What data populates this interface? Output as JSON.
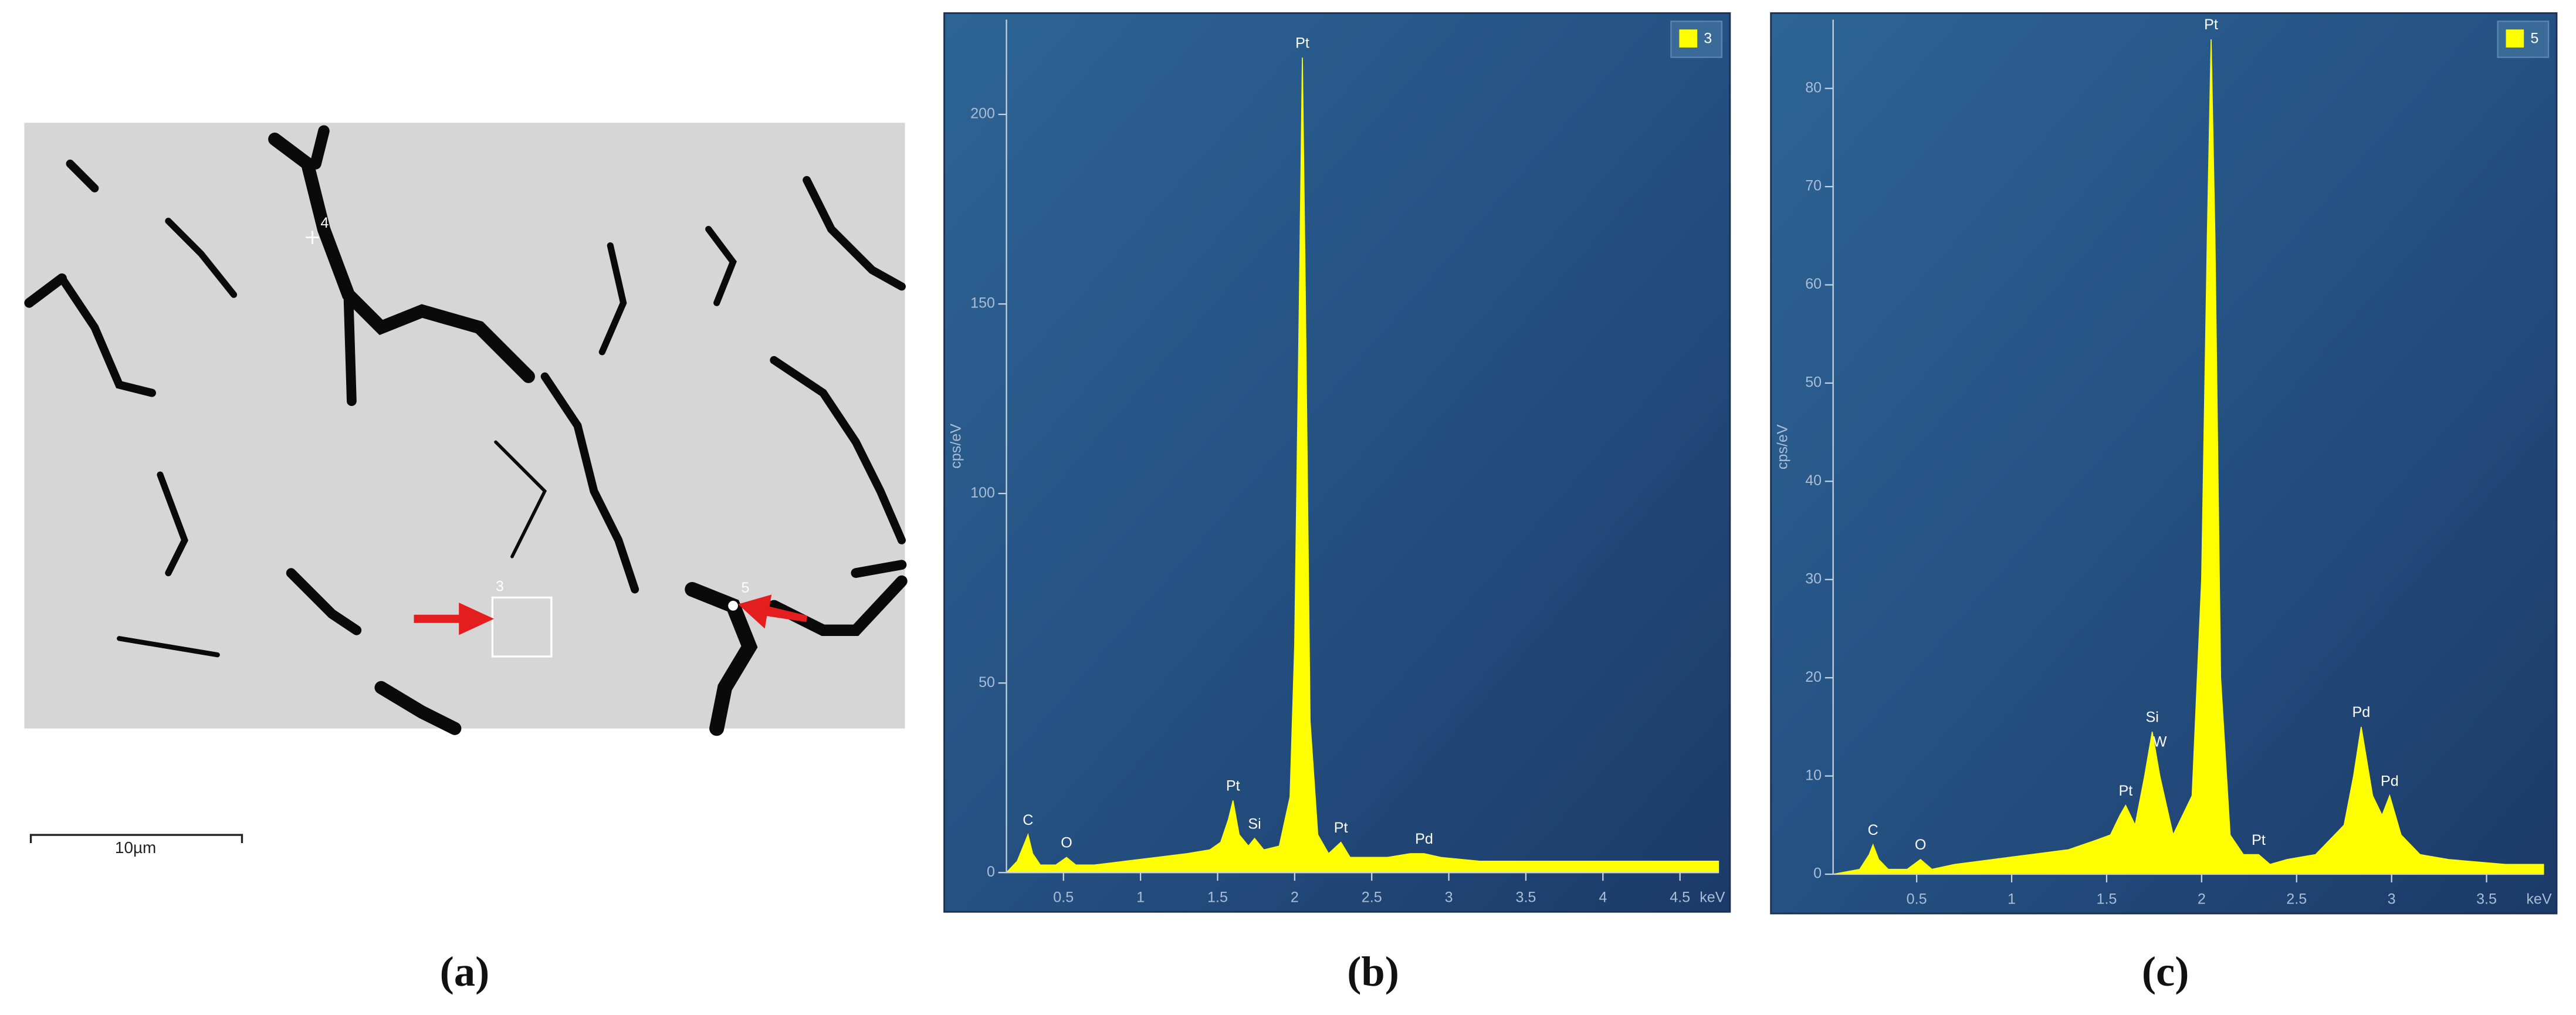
{
  "image_panel": {
    "point_labels": [
      "4",
      "3",
      "5"
    ],
    "scale_bar": "10µm",
    "caption": "(a)"
  },
  "chart_data": [
    {
      "type": "area",
      "caption": "(b)",
      "xlabel": "keV",
      "ylabel": "cps/eV",
      "x": [
        0.13,
        0.2,
        0.25,
        0.27,
        0.3,
        0.35,
        0.45,
        0.52,
        0.58,
        0.7,
        0.9,
        1.1,
        1.3,
        1.45,
        1.52,
        1.57,
        1.6,
        1.64,
        1.7,
        1.74,
        1.8,
        1.9,
        1.97,
        2.0,
        2.03,
        2.05,
        2.07,
        2.1,
        2.15,
        2.22,
        2.3,
        2.36,
        2.45,
        2.6,
        2.75,
        2.84,
        2.95,
        3.2,
        3.6,
        4.0,
        4.4,
        4.75
      ],
      "series": [
        {
          "name": "3",
          "color": "#ffff00",
          "values": [
            0,
            3,
            8,
            10,
            5,
            2,
            2,
            4,
            2,
            2,
            3,
            4,
            5,
            6,
            8,
            14,
            19,
            10,
            7,
            9,
            6,
            7,
            20,
            60,
            150,
            215,
            150,
            40,
            10,
            5,
            8,
            4,
            4,
            4,
            5,
            5,
            4,
            3,
            3,
            3,
            3,
            3
          ]
        }
      ],
      "xlim": [
        0.13,
        4.75
      ],
      "xticks": [
        0.5,
        1,
        1.5,
        2,
        2.5,
        3,
        3.5,
        4,
        4.5
      ],
      "ylim": [
        0,
        225
      ],
      "yticks": [
        0,
        50,
        100,
        150,
        200
      ],
      "annotations": [
        {
          "text": "C",
          "x": 0.27,
          "y": 10
        },
        {
          "text": "O",
          "x": 0.52,
          "y": 4
        },
        {
          "text": "Pt",
          "x": 1.6,
          "y": 19
        },
        {
          "text": "Si",
          "x": 1.74,
          "y": 9
        },
        {
          "text": "Pt",
          "x": 2.05,
          "y": 215
        },
        {
          "text": "Pt",
          "x": 2.3,
          "y": 8
        },
        {
          "text": "Pd",
          "x": 2.84,
          "y": 5
        }
      ]
    },
    {
      "type": "area",
      "caption": "(c)",
      "xlabel": "keV",
      "ylabel": "cps/eV",
      "x": [
        0.06,
        0.2,
        0.25,
        0.27,
        0.3,
        0.35,
        0.45,
        0.52,
        0.58,
        0.7,
        0.9,
        1.1,
        1.3,
        1.45,
        1.52,
        1.57,
        1.6,
        1.65,
        1.7,
        1.74,
        1.78,
        1.85,
        1.95,
        2.0,
        2.03,
        2.05,
        2.07,
        2.1,
        2.15,
        2.22,
        2.3,
        2.36,
        2.45,
        2.6,
        2.75,
        2.8,
        2.84,
        2.9,
        2.95,
        2.99,
        3.05,
        3.15,
        3.3,
        3.6,
        3.8
      ],
      "series": [
        {
          "name": "5",
          "color": "#ffff00",
          "values": [
            0,
            0.5,
            2,
            3,
            1.5,
            0.5,
            0.5,
            1.5,
            0.5,
            1,
            1.5,
            2,
            2.5,
            3.5,
            4,
            6,
            7,
            5,
            10,
            14.5,
            10,
            4,
            8,
            30,
            65,
            85,
            65,
            20,
            4,
            2,
            2,
            1,
            1.5,
            2,
            5,
            10,
            15,
            8,
            6,
            8,
            4,
            2,
            1.5,
            1,
            1
          ]
        }
      ],
      "xlim": [
        0.06,
        3.8
      ],
      "xticks": [
        0.5,
        1,
        1.5,
        2,
        2.5,
        3,
        3.5
      ],
      "ylim": [
        0,
        87
      ],
      "yticks": [
        0,
        10,
        20,
        30,
        40,
        50,
        60,
        70,
        80
      ],
      "annotations": [
        {
          "text": "C",
          "x": 0.27,
          "y": 3
        },
        {
          "text": "O",
          "x": 0.52,
          "y": 1.5
        },
        {
          "text": "Pt",
          "x": 1.6,
          "y": 7
        },
        {
          "text": "Si",
          "x": 1.74,
          "y": 14.5
        },
        {
          "text": "W",
          "x": 1.78,
          "y": 12
        },
        {
          "text": "Pt",
          "x": 2.05,
          "y": 85
        },
        {
          "text": "Pt",
          "x": 2.3,
          "y": 2
        },
        {
          "text": "Pd",
          "x": 2.84,
          "y": 15
        },
        {
          "text": "Pd",
          "x": 2.99,
          "y": 8
        }
      ]
    }
  ]
}
